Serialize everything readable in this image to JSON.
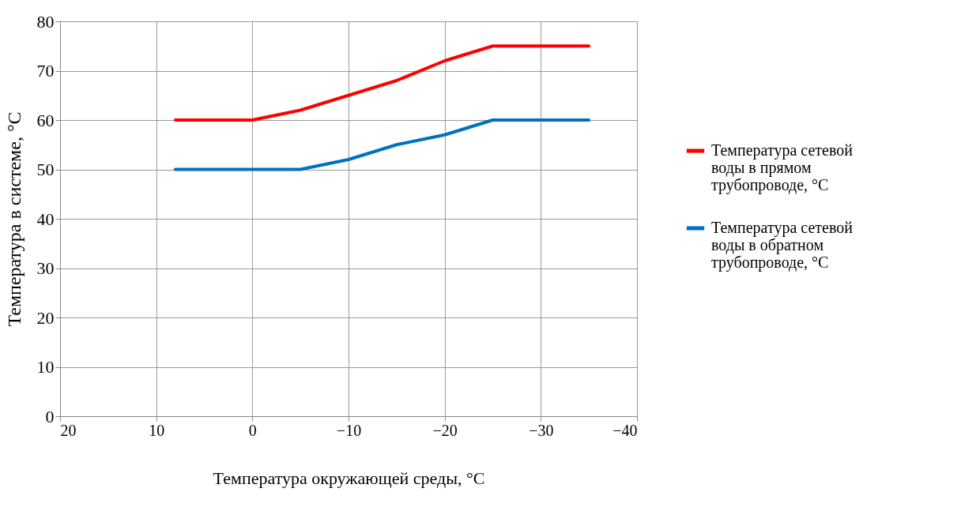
{
  "chart_data": {
    "type": "line",
    "xlabel": "Температура окружающей среды, °C",
    "ylabel": "Температура в системе, °C",
    "x": [
      8,
      0,
      -5,
      -10,
      -15,
      -20,
      -25,
      -35
    ],
    "xlim": [
      20,
      -40
    ],
    "xticks": [
      20,
      10,
      0,
      -10,
      -20,
      -30,
      -40
    ],
    "ylim": [
      0,
      80
    ],
    "yticks": [
      0,
      10,
      20,
      30,
      40,
      50,
      60,
      70,
      80
    ],
    "grid": true,
    "legend": "right",
    "line_style": "solid",
    "marker": "none",
    "series": [
      {
        "name": "Температура сетевой воды в прямом трубопроводе, °C",
        "color": "#ff0000",
        "values": [
          60,
          60,
          62,
          65,
          68,
          72,
          75,
          75
        ]
      },
      {
        "name": "Температура сетевой воды в обратном трубопроводе, °C",
        "color": "#0070c0",
        "values": [
          50,
          50,
          50,
          52,
          55,
          57,
          60,
          60
        ]
      }
    ]
  }
}
